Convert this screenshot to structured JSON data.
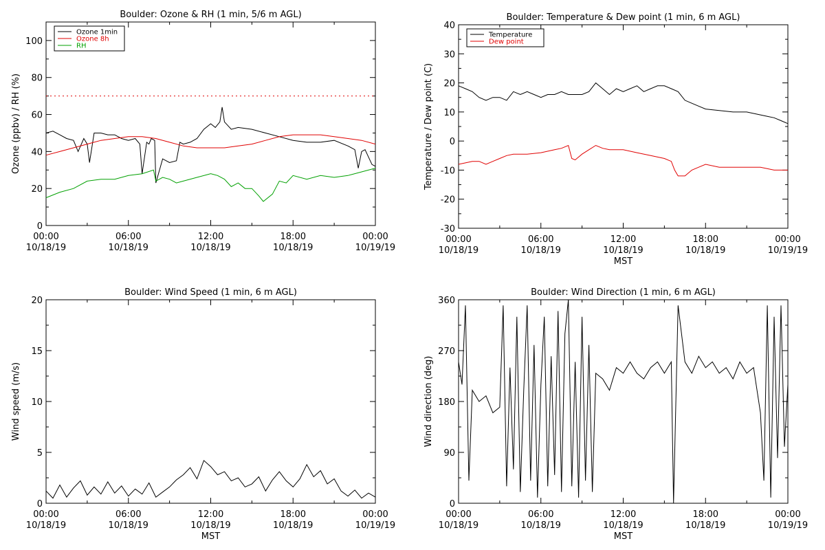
{
  "chart_data": [
    {
      "type": "line",
      "title": "Boulder: Ozone & RH (1 min, 5/6 m AGL)",
      "ylabel": "Ozone (ppbv) / RH (%)",
      "xlabel": "",
      "ylim": [
        0,
        110
      ],
      "yticks": [
        0,
        20,
        40,
        60,
        80,
        100
      ],
      "xlim": [
        "10/18/19 00:00",
        "10/19/19 00:00"
      ],
      "xtick_labels": [
        {
          "time": "00:00",
          "date": "10/18/19"
        },
        {
          "time": "06:00",
          "date": "10/18/19"
        },
        {
          "time": "12:00",
          "date": "10/18/19"
        },
        {
          "time": "18:00",
          "date": "10/18/19"
        },
        {
          "time": "00:00",
          "date": "10/19/19"
        }
      ],
      "legend_position": "top-left",
      "series": [
        {
          "name": "Ozone 1min",
          "color": "#000000",
          "x": [
            "00:00",
            "00:30",
            "01:00",
            "01:30",
            "02:00",
            "02:20",
            "02:45",
            "03:00",
            "03:10",
            "03:30",
            "04:00",
            "04:30",
            "05:00",
            "05:30",
            "06:00",
            "06:30",
            "06:50",
            "07:00",
            "07:20",
            "07:30",
            "07:40",
            "07:55",
            "08:00",
            "08:30",
            "09:00",
            "09:30",
            "09:45",
            "10:00",
            "10:30",
            "11:00",
            "11:30",
            "12:00",
            "12:20",
            "12:40",
            "12:50",
            "13:00",
            "13:30",
            "14:00",
            "15:00",
            "16:00",
            "17:00",
            "18:00",
            "19:00",
            "20:00",
            "21:00",
            "22:00",
            "22:30",
            "22:45",
            "23:00",
            "23:15",
            "23:30",
            "23:45",
            "24:00"
          ],
          "values": [
            50,
            51,
            49,
            47,
            46,
            40,
            47,
            44,
            34,
            50,
            50,
            49,
            49,
            47,
            46,
            47,
            44,
            28,
            45,
            44,
            47,
            46,
            23,
            36,
            34,
            35,
            45,
            44,
            45,
            47,
            52,
            55,
            53,
            56,
            64,
            56,
            52,
            53,
            52,
            50,
            48,
            46,
            45,
            45,
            46,
            43,
            41,
            31,
            40,
            41,
            37,
            33,
            32
          ]
        },
        {
          "name": "Ozone 8h",
          "color": "#e00000",
          "x": [
            "00:00",
            "01:00",
            "02:00",
            "03:00",
            "04:00",
            "05:00",
            "06:00",
            "07:00",
            "08:00",
            "09:00",
            "10:00",
            "11:00",
            "12:00",
            "13:00",
            "14:00",
            "15:00",
            "16:00",
            "17:00",
            "18:00",
            "19:00",
            "20:00",
            "21:00",
            "22:00",
            "23:00",
            "24:00"
          ],
          "values": [
            38,
            40,
            42,
            44,
            46,
            47,
            48,
            48,
            47,
            45,
            43,
            42,
            42,
            42,
            43,
            44,
            46,
            48,
            49,
            49,
            49,
            48,
            47,
            46,
            44
          ]
        },
        {
          "name": "RH",
          "color": "#00a000",
          "x": [
            "00:00",
            "01:00",
            "02:00",
            "03:00",
            "04:00",
            "05:00",
            "06:00",
            "07:00",
            "07:50",
            "08:00",
            "08:30",
            "09:00",
            "09:30",
            "10:00",
            "11:00",
            "12:00",
            "12:30",
            "13:00",
            "13:30",
            "14:00",
            "14:30",
            "15:00",
            "15:30",
            "15:50",
            "16:30",
            "17:00",
            "17:30",
            "18:00",
            "19:00",
            "20:00",
            "21:00",
            "22:00",
            "23:00",
            "24:00"
          ],
          "values": [
            15,
            18,
            20,
            24,
            25,
            25,
            27,
            28,
            30,
            24,
            26,
            25,
            23,
            24,
            26,
            28,
            27,
            25,
            21,
            23,
            20,
            20,
            16,
            13,
            17,
            24,
            23,
            27,
            25,
            27,
            26,
            27,
            29,
            31
          ]
        },
        {
          "name": "",
          "color": "#e00000",
          "style": "dotted",
          "x": [
            "00:00",
            "24:00"
          ],
          "values": [
            70,
            70
          ]
        }
      ]
    },
    {
      "type": "line",
      "title": "Boulder: Temperature & Dew point (1 min, 6 m AGL)",
      "ylabel": "Temperature / Dew point (C)",
      "xlabel": "MST",
      "ylim": [
        -30,
        40
      ],
      "yticks": [
        -30,
        -20,
        -10,
        0,
        10,
        20,
        30,
        40
      ],
      "xtick_labels": [
        {
          "time": "00:00",
          "date": "10/18/19"
        },
        {
          "time": "06:00",
          "date": "10/18/19"
        },
        {
          "time": "12:00",
          "date": "10/18/19"
        },
        {
          "time": "18:00",
          "date": "10/18/19"
        },
        {
          "time": "00:00",
          "date": "10/19/19"
        }
      ],
      "legend_position": "top-left",
      "series": [
        {
          "name": "Temperature",
          "color": "#000000",
          "x": [
            "00:00",
            "00:30",
            "01:00",
            "01:30",
            "02:00",
            "02:30",
            "03:00",
            "03:30",
            "04:00",
            "04:30",
            "05:00",
            "05:30",
            "06:00",
            "06:30",
            "07:00",
            "07:30",
            "08:00",
            "08:30",
            "09:00",
            "09:30",
            "10:00",
            "10:30",
            "11:00",
            "11:30",
            "12:00",
            "12:30",
            "13:00",
            "13:30",
            "14:00",
            "14:30",
            "15:00",
            "15:30",
            "16:00",
            "16:30",
            "17:00",
            "17:30",
            "18:00",
            "19:00",
            "20:00",
            "21:00",
            "22:00",
            "22:30",
            "23:00",
            "23:30",
            "24:00"
          ],
          "values": [
            19,
            18,
            17,
            15,
            14,
            15,
            15,
            14,
            17,
            16,
            17,
            16,
            15,
            16,
            16,
            17,
            16,
            16,
            16,
            17,
            20,
            18,
            16,
            18,
            17,
            18,
            19,
            17,
            18,
            19,
            19,
            18,
            17,
            14,
            13,
            12,
            11,
            10.5,
            10,
            10,
            9,
            8.5,
            8,
            7,
            6
          ]
        },
        {
          "name": "Dew point",
          "color": "#e00000",
          "x": [
            "00:00",
            "00:30",
            "01:00",
            "01:30",
            "02:00",
            "02:30",
            "03:00",
            "03:30",
            "04:00",
            "05:00",
            "06:00",
            "07:00",
            "07:30",
            "08:00",
            "08:15",
            "08:30",
            "09:00",
            "09:30",
            "10:00",
            "10:30",
            "11:00",
            "12:00",
            "13:00",
            "14:00",
            "15:00",
            "15:30",
            "15:45",
            "16:00",
            "16:30",
            "17:00",
            "17:30",
            "18:00",
            "19:00",
            "20:00",
            "21:00",
            "22:00",
            "23:00",
            "24:00"
          ],
          "values": [
            -8,
            -7.5,
            -7,
            -7,
            -8,
            -7,
            -6,
            -5,
            -4.5,
            -4.5,
            -4,
            -3,
            -2.5,
            -1.5,
            -6,
            -6.5,
            -4.5,
            -3,
            -1.5,
            -2.5,
            -3,
            -3,
            -4,
            -5,
            -6,
            -7,
            -10,
            -12,
            -12,
            -10,
            -9,
            -8,
            -9,
            -9,
            -9,
            -9,
            -10,
            -10
          ]
        }
      ]
    },
    {
      "type": "line",
      "title": "Boulder: Wind Speed (1 min, 6 m AGL)",
      "ylabel": "Wind speed (m/s)",
      "xlabel": "MST",
      "ylim": [
        0,
        20
      ],
      "yticks": [
        0,
        5,
        10,
        15,
        20
      ],
      "xtick_labels": [
        {
          "time": "00:00",
          "date": "10/18/19"
        },
        {
          "time": "06:00",
          "date": "10/18/19"
        },
        {
          "time": "12:00",
          "date": "10/18/19"
        },
        {
          "time": "18:00",
          "date": "10/18/19"
        },
        {
          "time": "00:00",
          "date": "10/19/19"
        }
      ],
      "series": [
        {
          "name": "",
          "color": "#000000",
          "x": [
            "00:00",
            "00:30",
            "01:00",
            "01:30",
            "02:00",
            "02:30",
            "03:00",
            "03:30",
            "04:00",
            "04:30",
            "05:00",
            "05:30",
            "06:00",
            "06:30",
            "07:00",
            "07:30",
            "08:00",
            "08:30",
            "09:00",
            "09:30",
            "10:00",
            "10:30",
            "11:00",
            "11:30",
            "12:00",
            "12:30",
            "13:00",
            "13:30",
            "14:00",
            "14:30",
            "15:00",
            "15:30",
            "16:00",
            "16:30",
            "17:00",
            "17:30",
            "18:00",
            "18:30",
            "19:00",
            "19:30",
            "20:00",
            "20:30",
            "21:00",
            "21:30",
            "22:00",
            "22:30",
            "23:00",
            "23:30",
            "24:00"
          ],
          "values": [
            1.2,
            0.5,
            1.8,
            0.6,
            1.5,
            2.2,
            0.8,
            1.6,
            0.9,
            2.1,
            1,
            1.7,
            0.7,
            1.4,
            0.9,
            2,
            0.6,
            1.1,
            1.6,
            2.3,
            2.8,
            3.5,
            2.4,
            4.2,
            3.6,
            2.8,
            3.1,
            2.2,
            2.5,
            1.6,
            1.9,
            2.6,
            1.2,
            2.3,
            3.1,
            2.2,
            1.6,
            2.4,
            3.8,
            2.6,
            3.2,
            1.9,
            2.4,
            1.2,
            0.7,
            1.3,
            0.5,
            1,
            0.6
          ]
        }
      ]
    },
    {
      "type": "line",
      "title": "Boulder: Wind Direction (1 min, 6 m AGL)",
      "ylabel": "Wind direction (deg)",
      "xlabel": "MST",
      "ylim": [
        0,
        360
      ],
      "yticks": [
        0,
        90,
        180,
        270,
        360
      ],
      "xtick_labels": [
        {
          "time": "00:00",
          "date": "10/18/19"
        },
        {
          "time": "06:00",
          "date": "10/18/19"
        },
        {
          "time": "12:00",
          "date": "10/18/19"
        },
        {
          "time": "18:00",
          "date": "10/18/19"
        },
        {
          "time": "00:00",
          "date": "10/19/19"
        }
      ],
      "series": [
        {
          "name": "",
          "color": "#000000",
          "x": [
            "00:00",
            "00:15",
            "00:30",
            "00:45",
            "01:00",
            "01:30",
            "02:00",
            "02:30",
            "03:00",
            "03:15",
            "03:30",
            "03:45",
            "04:00",
            "04:15",
            "04:30",
            "04:45",
            "05:00",
            "05:15",
            "05:30",
            "05:45",
            "06:00",
            "06:15",
            "06:30",
            "06:45",
            "07:00",
            "07:15",
            "07:30",
            "07:45",
            "08:00",
            "08:15",
            "08:30",
            "08:45",
            "09:00",
            "09:15",
            "09:30",
            "09:45",
            "10:00",
            "10:30",
            "11:00",
            "11:30",
            "12:00",
            "12:30",
            "13:00",
            "13:30",
            "14:00",
            "14:30",
            "15:00",
            "15:30",
            "15:40",
            "16:00",
            "16:30",
            "17:00",
            "17:30",
            "18:00",
            "18:30",
            "19:00",
            "19:30",
            "20:00",
            "20:30",
            "21:00",
            "21:30",
            "22:00",
            "22:15",
            "22:30",
            "22:45",
            "23:00",
            "23:15",
            "23:30",
            "23:45",
            "24:00"
          ],
          "values": [
            250,
            210,
            350,
            40,
            200,
            180,
            190,
            160,
            170,
            350,
            30,
            240,
            60,
            330,
            20,
            200,
            350,
            40,
            280,
            10,
            210,
            330,
            30,
            260,
            50,
            340,
            20,
            300,
            360,
            30,
            250,
            10,
            330,
            40,
            280,
            20,
            230,
            220,
            200,
            240,
            230,
            250,
            230,
            220,
            240,
            250,
            230,
            250,
            0,
            350,
            250,
            230,
            260,
            240,
            250,
            230,
            240,
            220,
            250,
            230,
            240,
            160,
            40,
            350,
            10,
            330,
            80,
            350,
            100,
            210
          ]
        }
      ]
    }
  ]
}
